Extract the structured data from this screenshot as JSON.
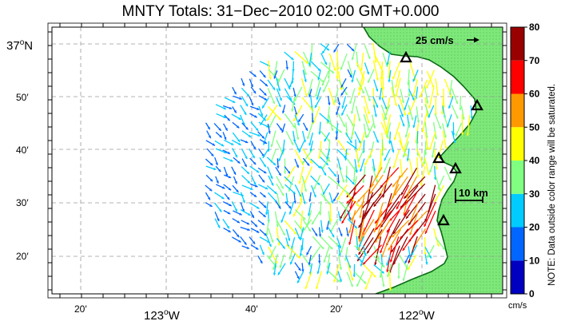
{
  "title": "MNTY Totals: 31−Dec−2010 02:00 GMT+0.000",
  "map": {
    "lat_labels": [
      {
        "text": "37",
        "hemi": "N",
        "major": true
      },
      {
        "text": "50′",
        "major": false
      },
      {
        "text": "40′",
        "major": false
      },
      {
        "text": "30′",
        "major": false
      },
      {
        "text": "20′",
        "major": false
      }
    ],
    "lon_labels": [
      {
        "text": "20′",
        "major": false
      },
      {
        "text": "123",
        "hemi": "W",
        "major": true
      },
      {
        "text": "40′",
        "major": false
      },
      {
        "text": "20′",
        "major": false
      },
      {
        "text": "122",
        "hemi": "W",
        "major": true
      }
    ],
    "degree_mark": "o",
    "reference_vector_label": "25 cm/s",
    "scale_bar_label": "10 km",
    "stations": [
      "station-1",
      "station-2",
      "station-3",
      "station-4",
      "station-5"
    ],
    "colors": {
      "land": "#7ee87a",
      "coast": "#0a6a14",
      "grid": "#9a9a9a"
    }
  },
  "colorbar": {
    "ticks": [
      "80",
      "70",
      "60",
      "50",
      "40",
      "30",
      "20",
      "10",
      "0"
    ],
    "unit": "cm/s",
    "note": "NOTE: Data outside color range will be saturated.",
    "colors": [
      "#0000c0",
      "#0066ff",
      "#00ccff",
      "#80ff80",
      "#ffff00",
      "#ff9900",
      "#ff0000",
      "#990000"
    ]
  }
}
